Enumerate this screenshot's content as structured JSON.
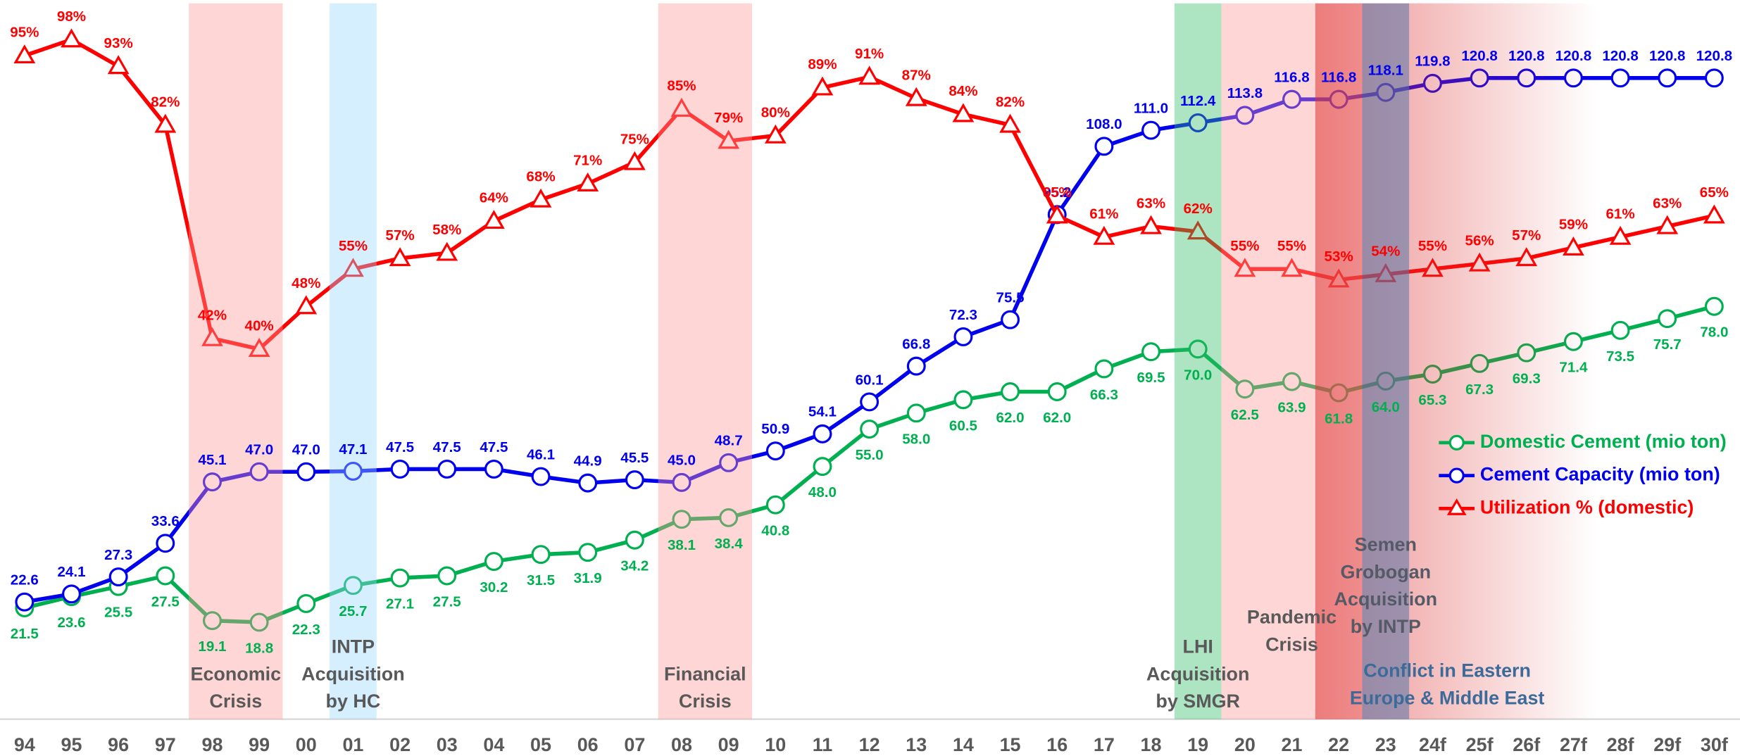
{
  "chart_data": {
    "type": "line",
    "categories": [
      "94",
      "95",
      "96",
      "97",
      "98",
      "99",
      "00",
      "01",
      "02",
      "03",
      "04",
      "05",
      "06",
      "07",
      "08",
      "09",
      "10",
      "11",
      "12",
      "13",
      "14",
      "15",
      "16",
      "17",
      "18",
      "19",
      "20",
      "21",
      "22",
      "23",
      "24f",
      "25f",
      "26f",
      "27f",
      "28f",
      "29f",
      "30f"
    ],
    "ylim": [
      0,
      135
    ],
    "y2lim": [
      -30,
      105
    ],
    "legend": "right",
    "series": [
      {
        "name": "Domestic Cement (mio ton)",
        "color": "#00b050",
        "marker": "circle",
        "axis": "y",
        "values": [
          21.5,
          23.6,
          25.5,
          27.5,
          19.1,
          18.8,
          22.3,
          25.7,
          27.1,
          27.5,
          30.2,
          31.5,
          31.9,
          34.2,
          38.1,
          38.4,
          40.8,
          48.0,
          55.0,
          58.0,
          60.5,
          62.0,
          62.0,
          66.3,
          69.5,
          70.0,
          62.5,
          63.9,
          61.8,
          64.0,
          65.3,
          67.3,
          69.3,
          71.4,
          73.5,
          75.7,
          78.0
        ],
        "value_labels": [
          "21.5",
          "23.6",
          "25.5",
          "27.5",
          "19.1",
          "18.8",
          "22.3",
          "25.7",
          "27.1",
          "27.5",
          "30.2",
          "31.5",
          "31.9",
          "34.2",
          "38.1",
          "38.4",
          "40.8",
          "48.0",
          "55.0",
          "58.0",
          "60.5",
          "62.0",
          "62.0",
          "66.3",
          "69.5",
          "70.0",
          "62.5",
          "63.9",
          "61.8",
          "64.0",
          "65.3",
          "67.3",
          "69.3",
          "71.4",
          "73.5",
          "75.7",
          "78.0"
        ]
      },
      {
        "name": "Cement Capacity (mio ton)",
        "color": "#0000ee",
        "marker": "circle",
        "axis": "y",
        "values": [
          22.6,
          24.1,
          27.3,
          33.6,
          45.1,
          47.0,
          47.0,
          47.1,
          47.5,
          47.5,
          47.5,
          46.1,
          44.9,
          45.5,
          45.0,
          48.7,
          50.9,
          54.1,
          60.1,
          66.8,
          72.3,
          75.5,
          95.2,
          108.0,
          111.0,
          112.4,
          113.8,
          116.8,
          116.8,
          118.1,
          119.8,
          120.8,
          120.8,
          120.8,
          120.8,
          120.8,
          120.8
        ],
        "value_labels": [
          "22.6",
          "24.1",
          "27.3",
          "33.6",
          "45.1",
          "47.0",
          "47.0",
          "47.1",
          "47.5",
          "47.5",
          "47.5",
          "46.1",
          "44.9",
          "45.5",
          "45.0",
          "48.7",
          "50.9",
          "54.1",
          "60.1",
          "66.8",
          "72.3",
          "75.5",
          "95.2",
          "108.0",
          "111.0",
          "112.4",
          "113.8",
          "116.8",
          "116.8",
          "118.1",
          "119.8",
          "120.8",
          "120.8",
          "120.8",
          "120.8",
          "120.8",
          "120.8"
        ]
      },
      {
        "name": "Utilization % (domestic)",
        "color": "#ff0000",
        "marker": "triangle",
        "axis": "y2",
        "values": [
          95,
          98,
          93,
          82,
          42,
          40,
          48,
          55,
          57,
          58,
          64,
          68,
          71,
          75,
          85,
          79,
          80,
          89,
          91,
          87,
          84,
          82,
          65,
          61,
          63,
          62,
          55,
          55,
          53,
          54,
          55,
          56,
          57,
          59,
          61,
          63,
          65
        ],
        "value_labels": [
          "95%",
          "98%",
          "93%",
          "82%",
          "42%",
          "40%",
          "48%",
          "55%",
          "57%",
          "58%",
          "64%",
          "68%",
          "71%",
          "75%",
          "85%",
          "79%",
          "80%",
          "89%",
          "91%",
          "87%",
          "84%",
          "82%",
          "65%",
          "61%",
          "63%",
          "62%",
          "55%",
          "55%",
          "53%",
          "54%",
          "55%",
          "56%",
          "57%",
          "59%",
          "61%",
          "63%",
          "65%"
        ]
      }
    ],
    "events": [
      {
        "lines": [
          "Economic",
          "Crisis"
        ],
        "start": "98",
        "end": "99",
        "color": "#ff9999"
      },
      {
        "lines": [
          "INTP",
          "Acquisition",
          "by HC"
        ],
        "start": "01",
        "end": "01",
        "color": "#99d6ff"
      },
      {
        "lines": [
          "Financial",
          "Crisis"
        ],
        "start": "08",
        "end": "09",
        "color": "#ff9999"
      },
      {
        "lines": [
          "LHI",
          "Acquisition",
          "by SMGR"
        ],
        "start": "19",
        "end": "19",
        "color": "#33bb66"
      },
      {
        "lines": [
          "Pandemic",
          "Crisis"
        ],
        "start": "20",
        "end": "22",
        "color": "#ff9999"
      },
      {
        "lines": [
          "Conflict in Eastern",
          "Europe & Middle East"
        ],
        "start": "22",
        "end": "27f",
        "color": "#dd3333",
        "fade": true
      },
      {
        "lines": [
          "Semen",
          "Grobogan",
          "Acquisition",
          "by INTP"
        ],
        "start": "23",
        "end": "23",
        "color": "#5577aa"
      }
    ]
  }
}
